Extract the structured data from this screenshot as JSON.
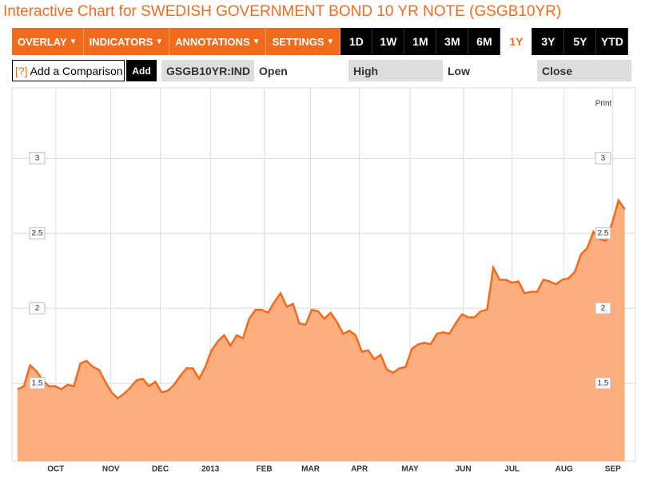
{
  "title": "Interactive Chart for SWEDISH GOVERNMENT BOND 10 YR NOTE (GSGB10YR)",
  "toolbar": {
    "menus": [
      "OVERLAY",
      "INDICATORS",
      "ANNOTATIONS",
      "SETTINGS"
    ],
    "ranges": [
      "1D",
      "1W",
      "1M",
      "3M",
      "6M",
      "1Y",
      "3Y",
      "5Y",
      "YTD"
    ],
    "selected_range": 5
  },
  "comparison": {
    "help": "[?]",
    "placeholder": "Add a Comparison",
    "button": "Add"
  },
  "quote": {
    "symbol": "GSGB10YR:IND",
    "fields": [
      "Open",
      "High",
      "Low",
      "Close"
    ]
  },
  "print": "Print",
  "chart_data": {
    "type": "area",
    "color": "#f26b1d",
    "fill": "#fdae7f",
    "grid": true,
    "values": [
      1.46,
      1.48,
      1.62,
      1.58,
      1.52,
      1.48,
      1.48,
      1.46,
      1.49,
      1.48,
      1.63,
      1.65,
      1.61,
      1.59,
      1.51,
      1.44,
      1.4,
      1.43,
      1.47,
      1.52,
      1.53,
      1.48,
      1.51,
      1.44,
      1.45,
      1.49,
      1.55,
      1.6,
      1.6,
      1.53,
      1.61,
      1.72,
      1.78,
      1.82,
      1.75,
      1.82,
      1.8,
      1.93,
      1.99,
      1.99,
      1.97,
      2.04,
      2.1,
      2.01,
      2.03,
      1.9,
      1.89,
      1.99,
      1.98,
      1.93,
      1.97,
      1.91,
      1.83,
      1.85,
      1.82,
      1.71,
      1.72,
      1.66,
      1.69,
      1.59,
      1.57,
      1.6,
      1.61,
      1.73,
      1.76,
      1.77,
      1.76,
      1.83,
      1.84,
      1.83,
      1.9,
      1.96,
      1.94,
      1.94,
      1.98,
      1.99,
      2.27,
      2.19,
      2.19,
      2.17,
      2.18,
      2.1,
      2.11,
      2.11,
      2.19,
      2.18,
      2.16,
      2.19,
      2.2,
      2.24,
      2.36,
      2.4,
      2.51,
      2.46,
      2.45,
      2.57,
      2.72,
      2.66
    ],
    "xlim": [
      -0.9,
      98.7
    ],
    "xticks": [
      {
        "value": 6.1,
        "label": "OCT"
      },
      {
        "value": 14.9,
        "label": "NOV"
      },
      {
        "value": 22.8,
        "label": "DEC"
      },
      {
        "value": 30.8,
        "label": "2013"
      },
      {
        "value": 39.4,
        "label": "FEB"
      },
      {
        "value": 46.8,
        "label": "MAR"
      },
      {
        "value": 54.6,
        "label": "APR"
      },
      {
        "value": 62.7,
        "label": "MAY"
      },
      {
        "value": 71.2,
        "label": "JUN"
      },
      {
        "value": 79.0,
        "label": "JUL"
      },
      {
        "value": 87.3,
        "label": "AUG"
      },
      {
        "value": 95.1,
        "label": "SEP"
      }
    ],
    "ylim": [
      0.98,
      3.47
    ],
    "yticks": [
      1.5,
      2,
      2.5,
      3
    ]
  }
}
